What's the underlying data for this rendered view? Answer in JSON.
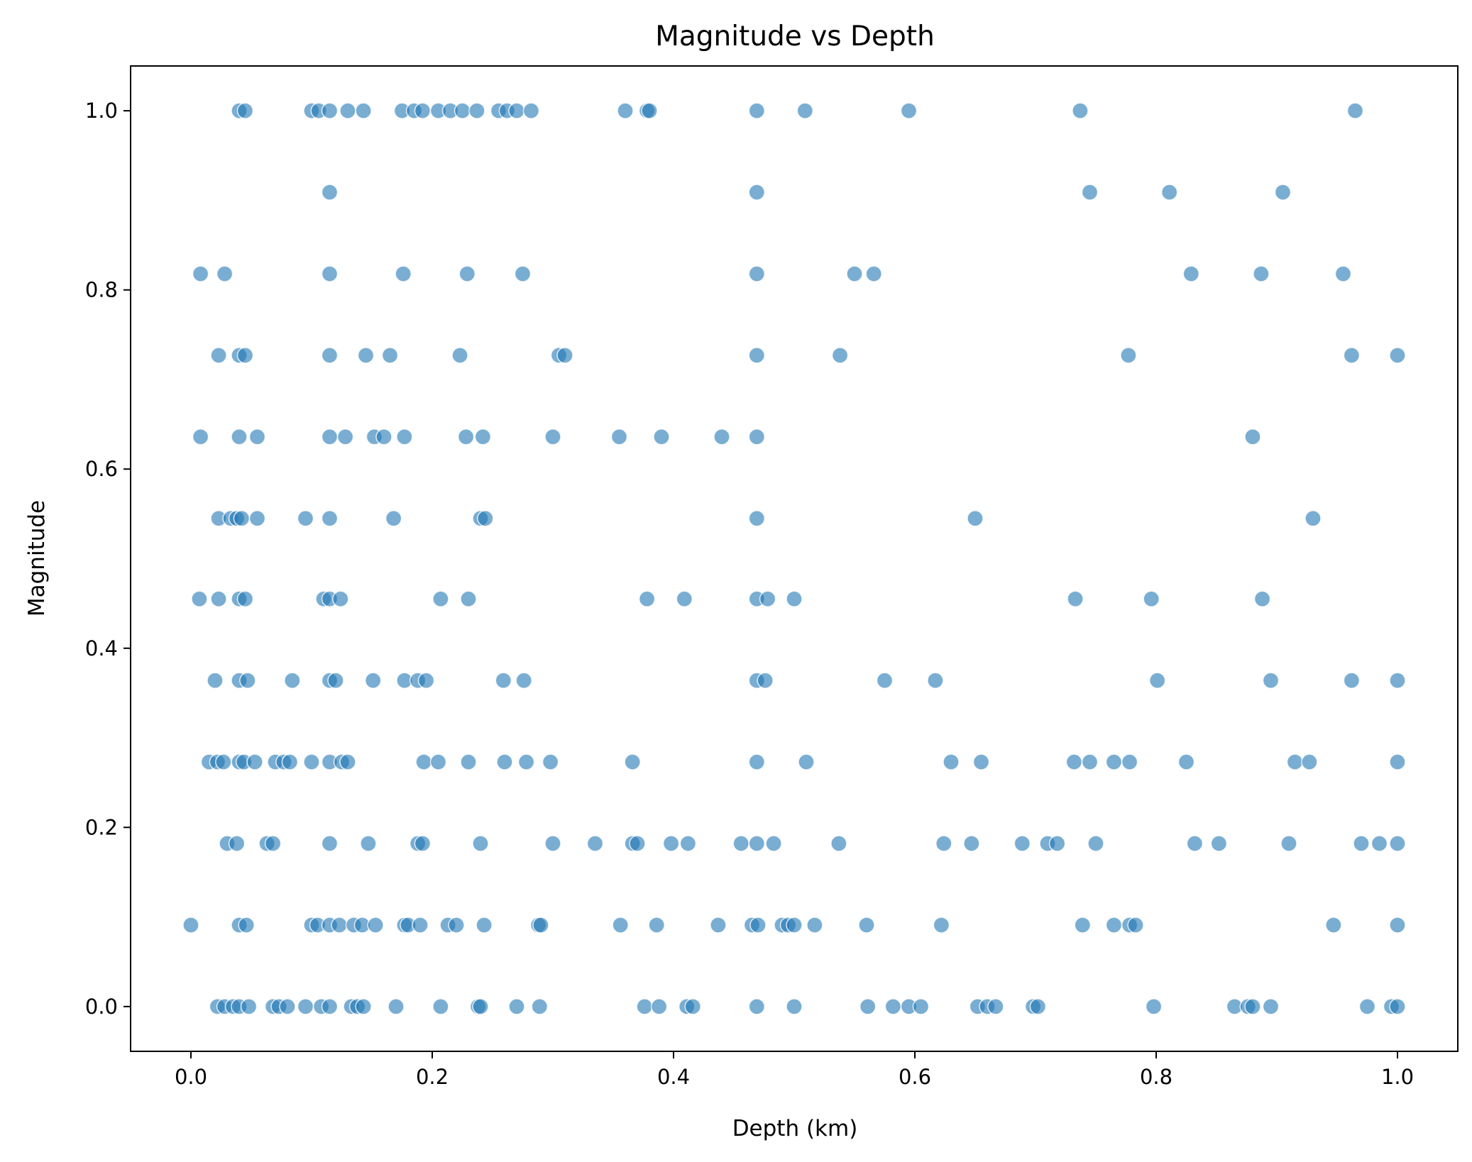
{
  "chart_data": {
    "type": "scatter",
    "title": "Magnitude vs Depth",
    "xlabel": "Depth (km)",
    "ylabel": "Magnitude",
    "xlim": [
      -0.05,
      1.05
    ],
    "ylim": [
      -0.05,
      1.05
    ],
    "xticks": [
      "0.0",
      "0.2",
      "0.4",
      "0.6",
      "0.8",
      "1.0"
    ],
    "yticks": [
      "0.0",
      "0.2",
      "0.4",
      "0.6",
      "0.8",
      "1.0"
    ],
    "grid": false,
    "marker_color": "#1f77b4",
    "marker_alpha": 0.6,
    "series": [
      {
        "x": [
          0.04,
          0.045,
          0.1,
          0.106,
          0.115,
          0.13,
          0.143,
          0.175,
          0.185,
          0.192,
          0.205,
          0.215,
          0.225,
          0.237,
          0.255,
          0.262,
          0.27,
          0.282,
          0.36,
          0.378,
          0.38,
          0.469,
          0.509,
          0.595,
          0.737,
          0.965,
          0.115,
          0.469,
          0.745,
          0.811,
          0.905,
          0.008,
          0.028,
          0.115,
          0.176,
          0.229,
          0.275,
          0.469,
          0.55,
          0.566,
          0.829,
          0.887,
          0.955,
          0.023,
          0.04,
          0.045,
          0.115,
          0.145,
          0.165,
          0.223,
          0.305,
          0.31,
          0.469,
          0.538,
          0.777,
          0.962,
          1.0,
          0.008,
          0.04,
          0.055,
          0.115,
          0.128,
          0.152,
          0.16,
          0.177,
          0.228,
          0.242,
          0.3,
          0.355,
          0.39,
          0.44,
          0.469,
          0.88,
          0.023,
          0.033,
          0.038,
          0.042,
          0.055,
          0.095,
          0.115,
          0.168,
          0.24,
          0.244,
          0.469,
          0.65,
          0.93,
          0.007,
          0.023,
          0.04,
          0.045,
          0.11,
          0.115,
          0.124,
          0.207,
          0.23,
          0.378,
          0.409,
          0.469,
          0.478,
          0.5,
          0.733,
          0.796,
          0.888,
          0.02,
          0.04,
          0.047,
          0.084,
          0.115,
          0.12,
          0.151,
          0.177,
          0.188,
          0.195,
          0.259,
          0.276,
          0.469,
          0.476,
          0.575,
          0.617,
          0.801,
          0.895,
          0.962,
          1.0,
          0.015,
          0.022,
          0.027,
          0.04,
          0.044,
          0.053,
          0.07,
          0.077,
          0.082,
          0.1,
          0.115,
          0.125,
          0.13,
          0.193,
          0.205,
          0.23,
          0.26,
          0.278,
          0.298,
          0.366,
          0.469,
          0.51,
          0.63,
          0.655,
          0.732,
          0.745,
          0.765,
          0.778,
          0.825,
          0.915,
          0.927,
          1.0,
          0.03,
          0.038,
          0.063,
          0.068,
          0.115,
          0.147,
          0.188,
          0.192,
          0.24,
          0.3,
          0.335,
          0.366,
          0.37,
          0.398,
          0.412,
          0.456,
          0.469,
          0.483,
          0.537,
          0.624,
          0.647,
          0.689,
          0.71,
          0.718,
          0.75,
          0.832,
          0.852,
          0.91,
          0.97,
          0.985,
          1.0,
          0.0,
          0.04,
          0.046,
          0.1,
          0.105,
          0.115,
          0.123,
          0.135,
          0.142,
          0.153,
          0.177,
          0.18,
          0.19,
          0.213,
          0.22,
          0.243,
          0.288,
          0.29,
          0.356,
          0.386,
          0.437,
          0.465,
          0.47,
          0.49,
          0.495,
          0.5,
          0.517,
          0.56,
          0.622,
          0.739,
          0.765,
          0.778,
          0.783,
          0.947,
          1.0,
          0.022,
          0.028,
          0.035,
          0.04,
          0.048,
          0.068,
          0.073,
          0.08,
          0.095,
          0.108,
          0.115,
          0.133,
          0.138,
          0.143,
          0.17,
          0.207,
          0.238,
          0.24,
          0.27,
          0.289,
          0.376,
          0.388,
          0.411,
          0.416,
          0.469,
          0.5,
          0.561,
          0.582,
          0.595,
          0.605,
          0.652,
          0.66,
          0.667,
          0.698,
          0.702,
          0.798,
          0.865,
          0.876,
          0.88,
          0.895,
          0.975,
          0.995,
          1.0
        ],
        "y": [
          1.0,
          1.0,
          1.0,
          1.0,
          1.0,
          1.0,
          1.0,
          1.0,
          1.0,
          1.0,
          1.0,
          1.0,
          1.0,
          1.0,
          1.0,
          1.0,
          1.0,
          1.0,
          1.0,
          1.0,
          1.0,
          1.0,
          1.0,
          1.0,
          1.0,
          1.0,
          0.909,
          0.909,
          0.909,
          0.909,
          0.909,
          0.818,
          0.818,
          0.818,
          0.818,
          0.818,
          0.818,
          0.818,
          0.818,
          0.818,
          0.818,
          0.818,
          0.818,
          0.727,
          0.727,
          0.727,
          0.727,
          0.727,
          0.727,
          0.727,
          0.727,
          0.727,
          0.727,
          0.727,
          0.727,
          0.727,
          0.727,
          0.636,
          0.636,
          0.636,
          0.636,
          0.636,
          0.636,
          0.636,
          0.636,
          0.636,
          0.636,
          0.636,
          0.636,
          0.636,
          0.636,
          0.636,
          0.636,
          0.545,
          0.545,
          0.545,
          0.545,
          0.545,
          0.545,
          0.545,
          0.545,
          0.545,
          0.545,
          0.545,
          0.545,
          0.545,
          0.455,
          0.455,
          0.455,
          0.455,
          0.455,
          0.455,
          0.455,
          0.455,
          0.455,
          0.455,
          0.455,
          0.455,
          0.455,
          0.455,
          0.455,
          0.455,
          0.455,
          0.364,
          0.364,
          0.364,
          0.364,
          0.364,
          0.364,
          0.364,
          0.364,
          0.364,
          0.364,
          0.364,
          0.364,
          0.364,
          0.364,
          0.364,
          0.364,
          0.364,
          0.364,
          0.364,
          0.364,
          0.273,
          0.273,
          0.273,
          0.273,
          0.273,
          0.273,
          0.273,
          0.273,
          0.273,
          0.273,
          0.273,
          0.273,
          0.273,
          0.273,
          0.273,
          0.273,
          0.273,
          0.273,
          0.273,
          0.273,
          0.273,
          0.273,
          0.273,
          0.273,
          0.273,
          0.273,
          0.273,
          0.273,
          0.273,
          0.273,
          0.273,
          0.273,
          0.182,
          0.182,
          0.182,
          0.182,
          0.182,
          0.182,
          0.182,
          0.182,
          0.182,
          0.182,
          0.182,
          0.182,
          0.182,
          0.182,
          0.182,
          0.182,
          0.182,
          0.182,
          0.182,
          0.182,
          0.182,
          0.182,
          0.182,
          0.182,
          0.182,
          0.182,
          0.182,
          0.182,
          0.182,
          0.182,
          0.182,
          0.091,
          0.091,
          0.091,
          0.091,
          0.091,
          0.091,
          0.091,
          0.091,
          0.091,
          0.091,
          0.091,
          0.091,
          0.091,
          0.091,
          0.091,
          0.091,
          0.091,
          0.091,
          0.091,
          0.091,
          0.091,
          0.091,
          0.091,
          0.091,
          0.091,
          0.091,
          0.091,
          0.091,
          0.091,
          0.091,
          0.091,
          0.091,
          0.091,
          0.091,
          0.091,
          0.0,
          0.0,
          0.0,
          0.0,
          0.0,
          0.0,
          0.0,
          0.0,
          0.0,
          0.0,
          0.0,
          0.0,
          0.0,
          0.0,
          0.0,
          0.0,
          0.0,
          0.0,
          0.0,
          0.0,
          0.0,
          0.0,
          0.0,
          0.0,
          0.0,
          0.0,
          0.0,
          0.0,
          0.0,
          0.0,
          0.0,
          0.0,
          0.0,
          0.0,
          0.0,
          0.0,
          0.0,
          0.0,
          0.0,
          0.0,
          0.0,
          0.0,
          0.0
        ]
      }
    ]
  }
}
